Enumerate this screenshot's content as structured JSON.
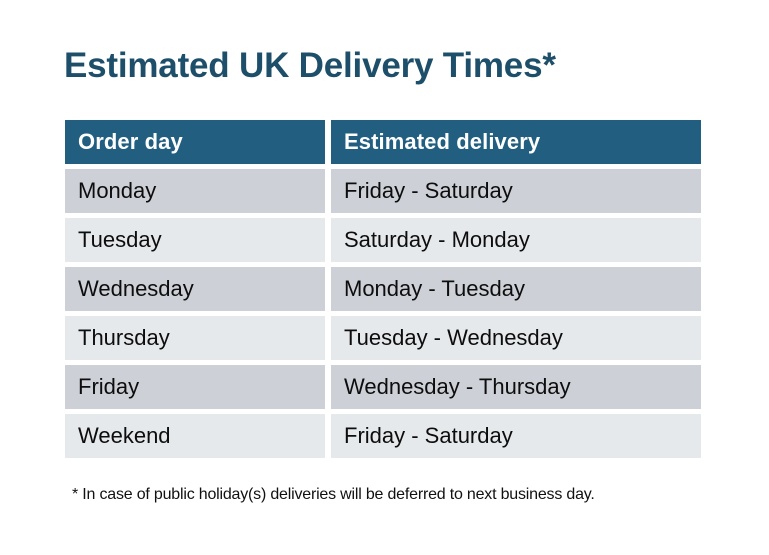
{
  "title": {
    "text": "Estimated UK Delivery Times*",
    "color": "#1d4f6a"
  },
  "table": {
    "columns": [
      {
        "key": "order_day",
        "label": "Order day"
      },
      {
        "key": "estimated_delivery",
        "label": "Estimated delivery"
      }
    ],
    "rows": [
      {
        "order_day": "Monday",
        "estimated_delivery": "Friday - Saturday"
      },
      {
        "order_day": "Tuesday",
        "estimated_delivery": "Saturday - Monday"
      },
      {
        "order_day": "Wednesday",
        "estimated_delivery": "Monday - Tuesday"
      },
      {
        "order_day": "Thursday",
        "estimated_delivery": "Tuesday - Wednesday"
      },
      {
        "order_day": "Friday",
        "estimated_delivery": "Wednesday - Thursday"
      },
      {
        "order_day": "Weekend",
        "estimated_delivery": "Friday - Saturday"
      }
    ],
    "colors": {
      "header_bg": "#215e80",
      "header_text": "#ffffff",
      "row_odd_bg": "#cdd1d7",
      "row_even_bg": "#e6e9ec",
      "row_text": "#0d0d0d",
      "gutter": "#ffffff"
    }
  },
  "footnote": {
    "text": "* In case of public holiday(s) deliveries will be deferred to next business day."
  }
}
